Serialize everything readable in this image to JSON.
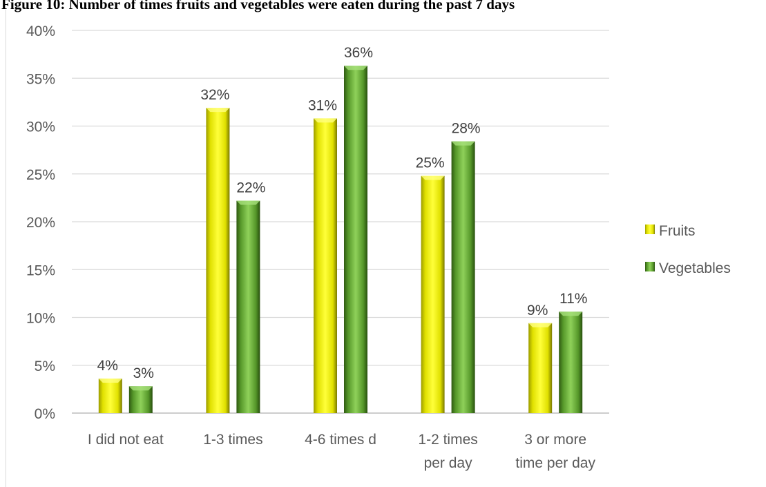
{
  "title": "Figure 10: Number of times fruits and vegetables were eaten during the past 7 days",
  "chart_data": {
    "type": "bar",
    "categories": [
      "I did not eat",
      "1-3 times",
      "4-6 times d",
      "1-2 times\nper day",
      "3 or more\ntime per day"
    ],
    "series": [
      {
        "name": "Fruits",
        "values": [
          3.6,
          31.9,
          30.8,
          24.8,
          9.4
        ],
        "labels": [
          "4%",
          "32%",
          "31%",
          "25%",
          "9%"
        ],
        "color": "#e6e600"
      },
      {
        "name": "Vegetables",
        "values": [
          2.8,
          22.2,
          36.3,
          28.4,
          10.6
        ],
        "labels": [
          "3%",
          "22%",
          "36%",
          "28%",
          "11%"
        ],
        "color": "#5ca12c"
      }
    ],
    "ylim": [
      0,
      40
    ],
    "yticks": [
      "0%",
      "5%",
      "10%",
      "15%",
      "20%",
      "25%",
      "30%",
      "35%",
      "40%"
    ],
    "xlabel": "",
    "ylabel": "",
    "grid": true,
    "legend_position": "right"
  }
}
